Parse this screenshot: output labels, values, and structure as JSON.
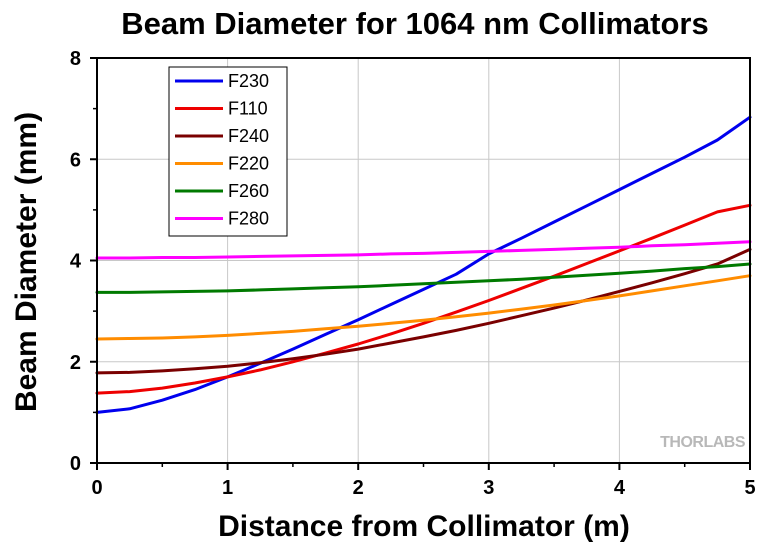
{
  "chart_data": {
    "type": "line",
    "title": "Beam Diameter for 1064 nm Collimators",
    "xlabel": "Distance from Collimator (m)",
    "ylabel": "Beam Diameter (mm)",
    "xlim": [
      0,
      5
    ],
    "ylim": [
      0,
      8
    ],
    "xticks": [
      "0",
      "1",
      "2",
      "3",
      "4",
      "5"
    ],
    "yticks": [
      "0",
      "2",
      "4",
      "6",
      "8"
    ],
    "grid": true,
    "legend_position": "top-left",
    "x": [
      0,
      0.25,
      0.5,
      0.75,
      1,
      1.25,
      1.5,
      1.75,
      2,
      2.25,
      2.5,
      2.75,
      3,
      3.25,
      3.5,
      3.75,
      4,
      4.25,
      4.5,
      4.75,
      5
    ],
    "series": [
      {
        "name": "F230",
        "color": "#0000ee",
        "values": [
          1.0,
          1.07,
          1.24,
          1.45,
          1.7,
          1.97,
          2.25,
          2.54,
          2.83,
          3.13,
          3.43,
          3.73,
          4.13,
          4.44,
          4.76,
          5.08,
          5.4,
          5.72,
          6.04,
          6.38,
          6.83
        ]
      },
      {
        "name": "F110",
        "color": "#ee0000",
        "values": [
          1.38,
          1.41,
          1.48,
          1.58,
          1.7,
          1.84,
          2.0,
          2.17,
          2.35,
          2.55,
          2.76,
          2.98,
          3.21,
          3.45,
          3.69,
          3.94,
          4.19,
          4.44,
          4.7,
          4.96,
          5.09
        ]
      },
      {
        "name": "F240",
        "color": "#7a0000",
        "values": [
          1.78,
          1.79,
          1.82,
          1.86,
          1.91,
          1.98,
          2.06,
          2.15,
          2.25,
          2.37,
          2.49,
          2.62,
          2.76,
          2.91,
          3.06,
          3.22,
          3.39,
          3.56,
          3.74,
          3.93,
          4.22
        ]
      },
      {
        "name": "F220",
        "color": "#ff8c00",
        "values": [
          2.45,
          2.46,
          2.47,
          2.49,
          2.52,
          2.56,
          2.6,
          2.65,
          2.7,
          2.76,
          2.82,
          2.89,
          2.96,
          3.04,
          3.12,
          3.21,
          3.3,
          3.4,
          3.5,
          3.6,
          3.7
        ]
      },
      {
        "name": "F260",
        "color": "#007a00",
        "values": [
          3.37,
          3.37,
          3.38,
          3.39,
          3.4,
          3.42,
          3.44,
          3.46,
          3.48,
          3.51,
          3.54,
          3.57,
          3.6,
          3.63,
          3.67,
          3.71,
          3.75,
          3.79,
          3.84,
          3.88,
          3.93
        ]
      },
      {
        "name": "F280",
        "color": "#ff00ff",
        "values": [
          4.05,
          4.05,
          4.06,
          4.06,
          4.07,
          4.08,
          4.09,
          4.1,
          4.11,
          4.13,
          4.14,
          4.16,
          4.18,
          4.2,
          4.22,
          4.24,
          4.26,
          4.29,
          4.31,
          4.34,
          4.37
        ]
      }
    ]
  },
  "watermark": "THORLABS"
}
